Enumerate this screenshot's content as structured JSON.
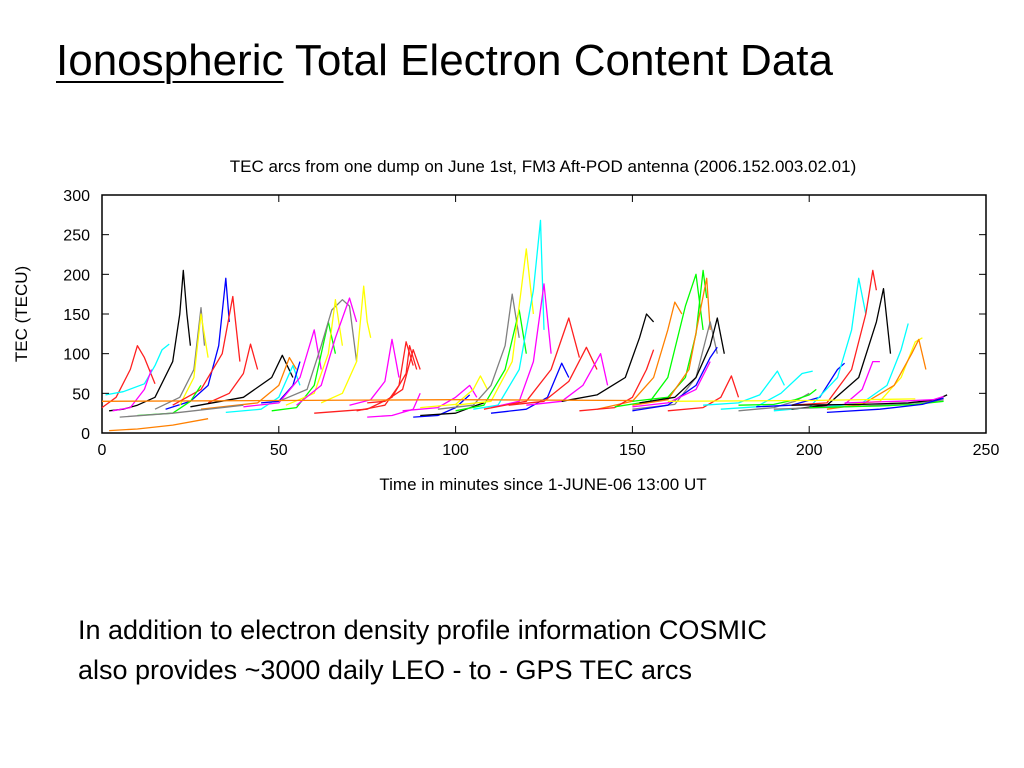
{
  "slide": {
    "title_underlined": "Ionospheric",
    "title_rest": "Total Electron Content Data",
    "body_line1": "In addition to electron density profile information COSMIC",
    "body_line2": "also provides ~3000 daily LEO - to - GPS TEC arcs"
  },
  "chart_data": {
    "type": "line",
    "title": "TEC arcs from one dump on June 1st, FM3 Aft-POD antenna (2006.152.003.02.01)",
    "xlabel": "Time in minutes since 1-JUNE-06 13:00 UT",
    "ylabel": "TEC (TECU)",
    "xlim": [
      0,
      250
    ],
    "ylim": [
      0,
      300
    ],
    "xticks": [
      0,
      50,
      100,
      150,
      200,
      250
    ],
    "yticks": [
      0,
      50,
      100,
      150,
      200,
      250,
      300
    ],
    "grid": false,
    "legend": "none",
    "series": [
      {
        "color": "#ff2020",
        "x": [
          0,
          4,
          8,
          10,
          12,
          15
        ],
        "y": [
          32,
          45,
          80,
          110,
          95,
          62
        ]
      },
      {
        "color": "#000000",
        "x": [
          2,
          6,
          10,
          15,
          20,
          22,
          23,
          24,
          25
        ],
        "y": [
          28,
          30,
          35,
          45,
          90,
          150,
          205,
          150,
          110
        ]
      },
      {
        "color": "#00ffff",
        "x": [
          1,
          6,
          12,
          15,
          17,
          19
        ],
        "y": [
          48,
          52,
          62,
          85,
          105,
          112
        ]
      },
      {
        "color": "#ff00ff",
        "x": [
          3,
          8,
          12,
          14
        ],
        "y": [
          28,
          32,
          55,
          80
        ]
      },
      {
        "color": "#0000ff",
        "x": [
          18,
          25,
          30,
          33,
          35,
          36
        ],
        "y": [
          30,
          40,
          60,
          110,
          195,
          140
        ]
      },
      {
        "color": "#808080",
        "x": [
          15,
          22,
          26,
          28,
          29
        ],
        "y": [
          30,
          45,
          80,
          158,
          110
        ]
      },
      {
        "color": "#ffff00",
        "x": [
          22,
          26,
          28,
          30
        ],
        "y": [
          35,
          70,
          150,
          95
        ]
      },
      {
        "color": "#ff2020",
        "x": [
          20,
          28,
          34,
          37,
          39
        ],
        "y": [
          35,
          55,
          100,
          172,
          90
        ]
      },
      {
        "color": "#ff2020",
        "x": [
          30,
          36,
          40,
          42,
          44
        ],
        "y": [
          38,
          50,
          75,
          112,
          80
        ]
      },
      {
        "color": "#00ff00",
        "x": [
          10,
          20,
          25,
          28
        ],
        "y": [
          22,
          25,
          40,
          60
        ]
      },
      {
        "color": "#000000",
        "x": [
          25,
          40,
          48,
          51,
          54
        ],
        "y": [
          33,
          45,
          70,
          98,
          70
        ]
      },
      {
        "color": "#ff8000",
        "x": [
          28,
          44,
          50,
          53,
          55
        ],
        "y": [
          30,
          38,
          60,
          95,
          80
        ]
      },
      {
        "color": "#00ffff",
        "x": [
          35,
          45,
          50,
          54,
          56
        ],
        "y": [
          26,
          30,
          45,
          85,
          60
        ]
      },
      {
        "color": "#0000ff",
        "x": [
          45,
          50,
          54,
          56
        ],
        "y": [
          38,
          40,
          60,
          90
        ]
      },
      {
        "color": "#ff00ff",
        "x": [
          40,
          50,
          56,
          60,
          62
        ],
        "y": [
          33,
          38,
          70,
          130,
          80
        ]
      },
      {
        "color": "#00ff00",
        "x": [
          48,
          55,
          60,
          64,
          66
        ],
        "y": [
          28,
          32,
          60,
          140,
          100
        ]
      },
      {
        "color": "#808080",
        "x": [
          50,
          58,
          62,
          65,
          68,
          70,
          72
        ],
        "y": [
          40,
          55,
          110,
          155,
          168,
          160,
          90
        ]
      },
      {
        "color": "#ffff00",
        "x": [
          52,
          60,
          64,
          66,
          68
        ],
        "y": [
          35,
          50,
          100,
          168,
          110
        ]
      },
      {
        "color": "#ff00ff",
        "x": [
          55,
          62,
          66,
          70,
          72
        ],
        "y": [
          35,
          60,
          120,
          170,
          140
        ]
      },
      {
        "color": "#ffff00",
        "x": [
          62,
          68,
          72,
          74,
          75,
          76
        ],
        "y": [
          38,
          50,
          90,
          185,
          140,
          120
        ]
      },
      {
        "color": "#ff00ff",
        "x": [
          70,
          76,
          80,
          82,
          84
        ],
        "y": [
          35,
          42,
          65,
          118,
          70
        ]
      },
      {
        "color": "#ff2020",
        "x": [
          72,
          80,
          84,
          86,
          88
        ],
        "y": [
          28,
          35,
          60,
          115,
          85
        ]
      },
      {
        "color": "#ff2020",
        "x": [
          60,
          75,
          82,
          86,
          87,
          89
        ],
        "y": [
          25,
          30,
          45,
          75,
          110,
          80
        ]
      },
      {
        "color": "#ff2020",
        "x": [
          75,
          80,
          85,
          88,
          90
        ],
        "y": [
          38,
          40,
          55,
          105,
          80
        ]
      },
      {
        "color": "#ff00ff",
        "x": [
          75,
          82,
          88,
          90
        ],
        "y": [
          20,
          22,
          30,
          50
        ]
      },
      {
        "color": "#ff00ff",
        "x": [
          85,
          95,
          100,
          104,
          106
        ],
        "y": [
          28,
          32,
          45,
          60,
          45
        ]
      },
      {
        "color": "#ffff00",
        "x": [
          90,
          100,
          105,
          107,
          109
        ],
        "y": [
          32,
          36,
          55,
          72,
          55
        ]
      },
      {
        "color": "#0000ff",
        "x": [
          88,
          95,
          100,
          104
        ],
        "y": [
          20,
          22,
          32,
          48
        ]
      },
      {
        "color": "#000000",
        "x": [
          90,
          100,
          106,
          108
        ],
        "y": [
          22,
          25,
          35,
          38
        ]
      },
      {
        "color": "#808080",
        "x": [
          95,
          105,
          110,
          114,
          116,
          118
        ],
        "y": [
          30,
          35,
          60,
          110,
          175,
          120
        ]
      },
      {
        "color": "#00ff00",
        "x": [
          100,
          108,
          114,
          118,
          120
        ],
        "y": [
          28,
          35,
          80,
          155,
          100
        ]
      },
      {
        "color": "#ffff00",
        "x": [
          100,
          110,
          116,
          120,
          122
        ],
        "y": [
          35,
          40,
          90,
          232,
          150
        ]
      },
      {
        "color": "#00ffff",
        "x": [
          105,
          112,
          118,
          122,
          124,
          125
        ],
        "y": [
          30,
          35,
          80,
          180,
          268,
          130
        ]
      },
      {
        "color": "#ff00ff",
        "x": [
          110,
          118,
          122,
          125,
          127
        ],
        "y": [
          32,
          40,
          90,
          188,
          100
        ]
      },
      {
        "color": "#ff2020",
        "x": [
          108,
          120,
          127,
          132,
          135
        ],
        "y": [
          30,
          40,
          80,
          145,
          95
        ]
      },
      {
        "color": "#0000ff",
        "x": [
          110,
          120,
          126,
          130,
          132
        ],
        "y": [
          25,
          30,
          45,
          88,
          70
        ]
      },
      {
        "color": "#ff2020",
        "x": [
          115,
          125,
          132,
          137,
          140
        ],
        "y": [
          35,
          40,
          65,
          108,
          80
        ]
      },
      {
        "color": "#ff00ff",
        "x": [
          120,
          130,
          136,
          141,
          143
        ],
        "y": [
          35,
          40,
          60,
          100,
          60
        ]
      },
      {
        "color": "#000000",
        "x": [
          130,
          140,
          148,
          152,
          154,
          156
        ],
        "y": [
          40,
          48,
          70,
          120,
          150,
          140
        ]
      },
      {
        "color": "#ff8000",
        "x": [
          140,
          150,
          156,
          160,
          162,
          164
        ],
        "y": [
          30,
          40,
          70,
          130,
          165,
          150
        ]
      },
      {
        "color": "#ff2020",
        "x": [
          135,
          145,
          150,
          154,
          156
        ],
        "y": [
          28,
          32,
          45,
          80,
          105
        ]
      },
      {
        "color": "#00ff00",
        "x": [
          145,
          155,
          160,
          165,
          168,
          170
        ],
        "y": [
          33,
          40,
          70,
          160,
          200,
          130
        ]
      },
      {
        "color": "#00ff00",
        "x": [
          150,
          160,
          165,
          168,
          170,
          171
        ],
        "y": [
          40,
          45,
          70,
          125,
          205,
          170
        ]
      },
      {
        "color": "#ff8000",
        "x": [
          150,
          160,
          166,
          169,
          171,
          172
        ],
        "y": [
          35,
          42,
          80,
          150,
          195,
          130
        ]
      },
      {
        "color": "#808080",
        "x": [
          150,
          162,
          168,
          172,
          174
        ],
        "y": [
          30,
          36,
          70,
          140,
          100
        ]
      },
      {
        "color": "#000000",
        "x": [
          152,
          162,
          168,
          172,
          174,
          176
        ],
        "y": [
          38,
          45,
          70,
          110,
          145,
          100
        ]
      },
      {
        "color": "#0000ff",
        "x": [
          150,
          160,
          168,
          172,
          174
        ],
        "y": [
          28,
          35,
          60,
          95,
          108
        ]
      },
      {
        "color": "#ff00ff",
        "x": [
          150,
          160,
          168,
          172
        ],
        "y": [
          33,
          38,
          55,
          90
        ]
      },
      {
        "color": "#ff2020",
        "x": [
          160,
          170,
          175,
          178,
          180
        ],
        "y": [
          28,
          32,
          45,
          72,
          45
        ]
      },
      {
        "color": "#00ffff",
        "x": [
          170,
          180,
          186,
          191,
          193
        ],
        "y": [
          35,
          38,
          48,
          78,
          60
        ]
      },
      {
        "color": "#00ffff",
        "x": [
          175,
          185,
          192,
          198,
          201
        ],
        "y": [
          30,
          33,
          50,
          75,
          78
        ]
      },
      {
        "color": "#808080",
        "x": [
          180,
          190,
          196,
          200
        ],
        "y": [
          28,
          32,
          40,
          50
        ]
      },
      {
        "color": "#00ff00",
        "x": [
          180,
          190,
          196,
          200,
          202
        ],
        "y": [
          35,
          36,
          42,
          48,
          55
        ]
      },
      {
        "color": "#0000ff",
        "x": [
          185,
          195,
          203,
          208,
          210
        ],
        "y": [
          33,
          35,
          45,
          80,
          88
        ]
      },
      {
        "color": "#00ffff",
        "x": [
          190,
          200,
          208,
          212,
          214,
          216
        ],
        "y": [
          28,
          32,
          70,
          130,
          195,
          150
        ]
      },
      {
        "color": "#ff2020",
        "x": [
          195,
          205,
          212,
          216,
          218,
          219
        ],
        "y": [
          35,
          38,
          80,
          150,
          205,
          180
        ]
      },
      {
        "color": "#ff00ff",
        "x": [
          200,
          210,
          215,
          218,
          220
        ],
        "y": [
          32,
          36,
          55,
          90,
          90
        ]
      },
      {
        "color": "#000000",
        "x": [
          195,
          205,
          214,
          219,
          221,
          223
        ],
        "y": [
          30,
          35,
          70,
          140,
          182,
          100
        ]
      },
      {
        "color": "#00ffff",
        "x": [
          205,
          215,
          222,
          226,
          228
        ],
        "y": [
          33,
          38,
          60,
          105,
          138
        ]
      },
      {
        "color": "#ffff00",
        "x": [
          210,
          220,
          226,
          230,
          232
        ],
        "y": [
          35,
          40,
          70,
          115,
          120
        ]
      },
      {
        "color": "#ff8000",
        "x": [
          205,
          215,
          224,
          229,
          231,
          233
        ],
        "y": [
          30,
          36,
          60,
          100,
          118,
          80
        ]
      },
      {
        "color": "#808080",
        "x": [
          190,
          210,
          225,
          235,
          238
        ],
        "y": [
          30,
          33,
          36,
          40,
          42
        ]
      },
      {
        "color": "#000000",
        "x": [
          195,
          215,
          228,
          236,
          239
        ],
        "y": [
          35,
          36,
          38,
          42,
          48
        ]
      },
      {
        "color": "#00ff00",
        "x": [
          200,
          220,
          230,
          238
        ],
        "y": [
          32,
          34,
          36,
          40
        ]
      },
      {
        "color": "#0000ff",
        "x": [
          205,
          220,
          232,
          238
        ],
        "y": [
          26,
          30,
          36,
          44
        ]
      },
      {
        "color": "#ff00ff",
        "x": [
          210,
          225,
          235,
          238
        ],
        "y": [
          38,
          40,
          42,
          46
        ]
      },
      {
        "color": "#ff8000",
        "x": [
          0,
          50,
          100,
          150
        ],
        "y": [
          40,
          41,
          42,
          41
        ]
      },
      {
        "color": "#ffff00",
        "x": [
          160,
          200,
          230
        ],
        "y": [
          40,
          41,
          43
        ]
      },
      {
        "color": "#808080",
        "x": [
          5,
          20,
          40
        ],
        "y": [
          20,
          25,
          35
        ]
      },
      {
        "color": "#ff8000",
        "x": [
          2,
          10,
          20,
          30
        ],
        "y": [
          3,
          5,
          10,
          18
        ]
      }
    ]
  }
}
